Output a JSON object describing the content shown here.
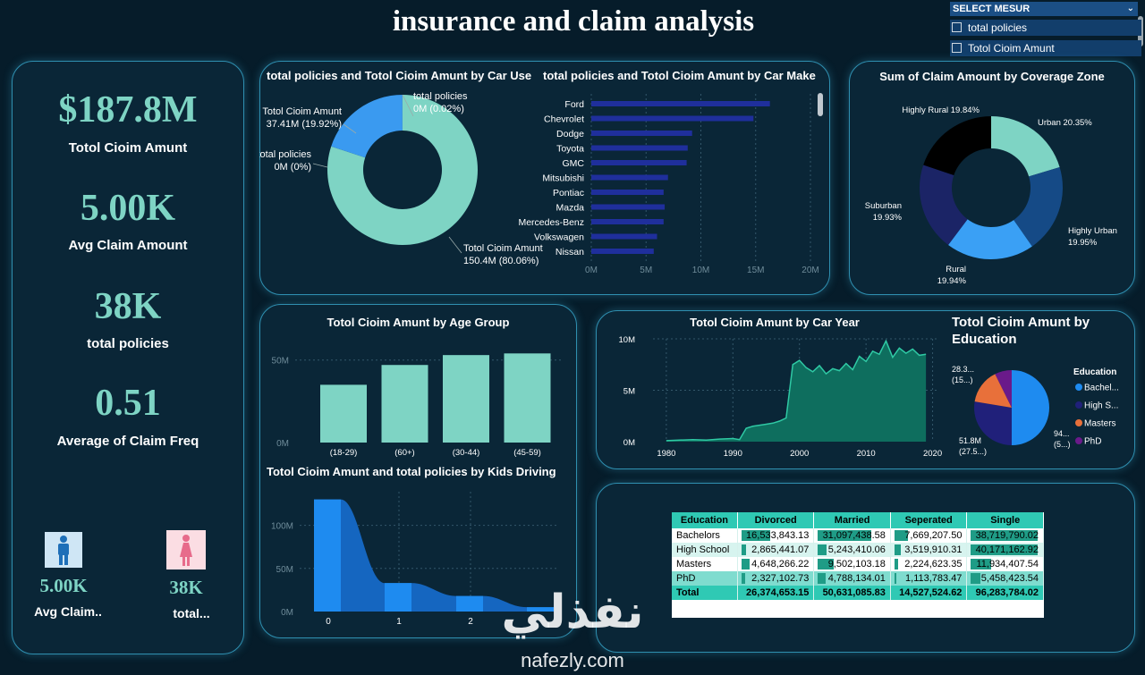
{
  "page": {
    "title": "insurance and claim analysis"
  },
  "slicer": {
    "header": "SELECT MESUR",
    "options": [
      "total policies",
      "Totol Cioim Amunt"
    ]
  },
  "kpis": [
    {
      "value": "$187.8M",
      "label": "Totol Cioim Amunt"
    },
    {
      "value": "5.00K",
      "label": "Avg Claim Amount"
    },
    {
      "value": "38K",
      "label": "total policies"
    },
    {
      "value": "0.51",
      "label": "Average of Claim Freq"
    }
  ],
  "gender_kpis": [
    {
      "value": "5.00K",
      "label": "Avg Claim..",
      "icon": "male-icon"
    },
    {
      "value": "38K",
      "label": "total...",
      "icon": "female-icon"
    }
  ],
  "colors": {
    "teal": "#7ed4c4",
    "blue": "#1e8bf0",
    "navy": "#20207a",
    "orange": "#e8703a",
    "purple": "#6a1a8a",
    "bar": "#1f2f9c"
  },
  "chart_data": [
    {
      "id": "car_use_donut",
      "type": "pie",
      "title": "total policies and Totol Cioim Amunt by Car Use",
      "slices": [
        {
          "name": "Totol Cioim Amunt",
          "value": 150.4,
          "label": "150.4M (80.06%)",
          "color": "#7ed4c4"
        },
        {
          "name": "Totol Cioim Amunt",
          "value": 37.41,
          "label": "37.41M (19.92%)",
          "color": "#3a9af0"
        },
        {
          "name": "total policies",
          "value": 0.04,
          "label": "0M (0.02%)",
          "color": "#9fe3d6"
        },
        {
          "name": "total policies",
          "value": 0.0,
          "label": "0M (0%)",
          "color": "#ffffff"
        }
      ]
    },
    {
      "id": "car_make_bar",
      "type": "bar",
      "title": "total policies and Totol Cioim Amunt by Car Make",
      "categories": [
        "Ford",
        "Chevrolet",
        "Dodge",
        "Toyota",
        "GMC",
        "Mitsubishi",
        "Pontiac",
        "Mazda",
        "Mercedes-Benz",
        "Volkswagen",
        "Nissan"
      ],
      "values": [
        16.3,
        14.8,
        9.2,
        8.8,
        8.7,
        7.0,
        6.6,
        6.7,
        6.6,
        6.0,
        5.7
      ],
      "ticks": [
        "0M",
        "5M",
        "10M",
        "15M",
        "20M"
      ],
      "xlim": [
        0,
        20
      ]
    },
    {
      "id": "coverage_zone_donut",
      "type": "pie",
      "title": "Sum of Claim Amount by Coverage Zone",
      "slices": [
        {
          "name": "Urban",
          "value": 20.35,
          "label": "Urban 20.35%",
          "color": "#7ed4c4"
        },
        {
          "name": "Highly Urban",
          "value": 19.95,
          "label": "Highly Urban 19.95%",
          "color": "#154a86"
        },
        {
          "name": "Rural",
          "value": 19.94,
          "label": "Rural 19.94%",
          "color": "#3aa0f5"
        },
        {
          "name": "Suburban",
          "value": 19.93,
          "label": "Suburban 19.93%",
          "color": "#1b2466"
        },
        {
          "name": "Highly Rural",
          "value": 19.84,
          "label": "Highly Rural 19.84%",
          "color": "#000000"
        }
      ]
    },
    {
      "id": "age_group_bar",
      "type": "bar",
      "title": "Totol Cioim Amunt by Age Group",
      "categories": [
        "(18-29)",
        "(60+)",
        "(30-44)",
        "(45-59)"
      ],
      "values": [
        35,
        47,
        53,
        54
      ],
      "ticks": [
        "0M",
        "50M"
      ],
      "ylim": [
        0,
        65
      ]
    },
    {
      "id": "car_year_area",
      "type": "area",
      "title": "Totol Cioim Amunt by Car Year",
      "x": [
        1980,
        1982,
        1984,
        1986,
        1988,
        1990,
        1991,
        1992,
        1993,
        1994,
        1995,
        1996,
        1997,
        1998,
        1999,
        2000,
        2001,
        2002,
        2003,
        2004,
        2005,
        2006,
        2007,
        2008,
        2009,
        2010,
        2011,
        2012,
        2013,
        2014,
        2015,
        2016,
        2017,
        2018,
        2019
      ],
      "values": [
        0.1,
        0.15,
        0.2,
        0.15,
        0.25,
        0.3,
        0.2,
        1.3,
        1.5,
        1.6,
        1.7,
        1.8,
        2.0,
        2.3,
        7.5,
        7.9,
        7.2,
        6.8,
        7.4,
        6.6,
        7.1,
        6.9,
        7.6,
        7.0,
        8.3,
        7.8,
        8.8,
        8.5,
        9.8,
        8.2,
        9.1,
        8.6,
        9.0,
        8.4,
        8.5
      ],
      "xticks": [
        1980,
        1990,
        2000,
        2010,
        2020
      ],
      "yticks": [
        "0M",
        "5M",
        "10M"
      ],
      "xlim": [
        1978,
        2021
      ],
      "ylim": [
        0,
        10
      ]
    },
    {
      "id": "education_pie",
      "type": "pie",
      "title": "Totol Cioim Amunt by Education",
      "legend_title": "Education",
      "legend": [
        "Bachel...",
        "High S...",
        "Masters",
        "PhD"
      ],
      "slices": [
        {
          "name": "Bachelors",
          "value": 94,
          "label": "94...\n(5...)",
          "color": "#1e8bf0"
        },
        {
          "name": "High School",
          "value": 51.8,
          "label": "51.8M\n(27.5...)",
          "color": "#20207a"
        },
        {
          "name": "Masters",
          "value": 28.3,
          "label": "28.3...\n(15...)",
          "color": "#e8703a"
        },
        {
          "name": "PhD",
          "value": 13.7,
          "label": "",
          "color": "#6a1a8a"
        }
      ]
    },
    {
      "id": "kids_driving_area",
      "type": "area",
      "title": "Totol Cioim Amunt and total policies by Kids Driving",
      "x": [
        0,
        1,
        2,
        3
      ],
      "values": [
        130,
        33,
        18,
        5
      ],
      "xticks": [
        "0",
        "1",
        "2"
      ],
      "yticks": [
        "0M",
        "50M",
        "100M"
      ],
      "ylim": [
        0,
        140
      ]
    }
  ],
  "matrix": {
    "headers": [
      "Education",
      "Divorced",
      "Married",
      "Seperated",
      "Single"
    ],
    "rows": [
      {
        "label": "Bachelors",
        "values": [
          "16,533,843.13",
          "31,097,438.58",
          "7,669,207.50",
          "38,719,790.02"
        ],
        "bars": [
          0.43,
          0.8,
          0.2,
          1.0
        ]
      },
      {
        "label": "High School",
        "values": [
          "2,865,441.07",
          "5,243,410.06",
          "3,519,910.31",
          "40,171,162.92"
        ],
        "bars": [
          0.07,
          0.13,
          0.09,
          1.0
        ]
      },
      {
        "label": "Masters",
        "values": [
          "4,648,266.22",
          "9,502,103.18",
          "2,224,623.35",
          "11,934,407.54"
        ],
        "bars": [
          0.12,
          0.24,
          0.06,
          0.3
        ]
      },
      {
        "label": "PhD",
        "values": [
          "2,327,102.73",
          "4,788,134.01",
          "1,113,783.47",
          "5,458,423.54"
        ],
        "bars": [
          0.06,
          0.12,
          0.03,
          0.14
        ]
      }
    ],
    "total": {
      "label": "Total",
      "values": [
        "26,374,653.15",
        "50,631,085.83",
        "14,527,524.62",
        "96,283,784.02"
      ]
    }
  },
  "watermark": {
    "arabic": "نفذلي",
    "latin": "nafezly.com"
  }
}
